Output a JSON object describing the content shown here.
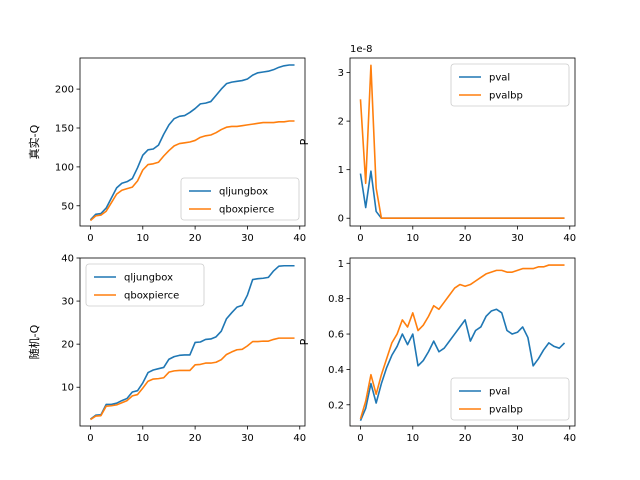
{
  "colors": {
    "series1": "#1f77b4",
    "series2": "#ff7f0e"
  },
  "chart_data": [
    {
      "type": "line",
      "ylabel": "真实-Q",
      "xlabel": "",
      "xlim": [
        -2,
        41
      ],
      "ylim": [
        24,
        240
      ],
      "xticks": [
        0,
        10,
        20,
        30,
        40
      ],
      "yticks": [
        50,
        100,
        150,
        200
      ],
      "offset_text": "",
      "legend": "lower right",
      "x": [
        0,
        1,
        2,
        3,
        4,
        5,
        6,
        7,
        8,
        9,
        10,
        11,
        12,
        13,
        14,
        15,
        16,
        17,
        18,
        19,
        20,
        21,
        22,
        23,
        24,
        25,
        26,
        27,
        28,
        29,
        30,
        31,
        32,
        33,
        34,
        35,
        36,
        37,
        38,
        39
      ],
      "series": [
        {
          "name": "qljungbox",
          "values": [
            32,
            39,
            40,
            47,
            60,
            73,
            79,
            81,
            85,
            99,
            115,
            122,
            123,
            128,
            142,
            154,
            162,
            165,
            166,
            170,
            175,
            181,
            182,
            184,
            192,
            200,
            207,
            209,
            210,
            211,
            213,
            218,
            221,
            222,
            223,
            225,
            228,
            230,
            231,
            231
          ]
        },
        {
          "name": "qboxpierce",
          "values": [
            31,
            37,
            38,
            43,
            54,
            65,
            70,
            72,
            74,
            82,
            96,
            103,
            104,
            106,
            114,
            121,
            127,
            130,
            131,
            132,
            134,
            138,
            140,
            141,
            144,
            148,
            151,
            152,
            152,
            153,
            154,
            155,
            156,
            157,
            157,
            157,
            158,
            158,
            159,
            159
          ]
        }
      ]
    },
    {
      "type": "line",
      "ylabel": "P",
      "xlabel": "",
      "xlim": [
        -2,
        41
      ],
      "ylim": [
        -0.16,
        3.3
      ],
      "xticks": [
        0,
        10,
        20,
        30,
        40
      ],
      "yticks": [
        0,
        1,
        2,
        3
      ],
      "offset_text": "1e-8",
      "legend": "upper right",
      "x": [
        0,
        1,
        2,
        3,
        4,
        5,
        6,
        7,
        8,
        9,
        10,
        11,
        12,
        13,
        14,
        15,
        16,
        17,
        18,
        19,
        20,
        21,
        22,
        23,
        24,
        25,
        26,
        27,
        28,
        29,
        30,
        31,
        32,
        33,
        34,
        35,
        36,
        37,
        38,
        39
      ],
      "series": [
        {
          "name": "pval",
          "values": [
            0.92,
            0.22,
            0.97,
            0.14,
            0,
            0,
            0,
            0,
            0,
            0,
            0,
            0,
            0,
            0,
            0,
            0,
            0,
            0,
            0,
            0,
            0,
            0,
            0,
            0,
            0,
            0,
            0,
            0,
            0,
            0,
            0,
            0,
            0,
            0,
            0,
            0,
            0,
            0,
            0,
            0
          ]
        },
        {
          "name": "pvalbp",
          "values": [
            2.45,
            0.72,
            3.15,
            0.62,
            0,
            0,
            0,
            0,
            0,
            0,
            0,
            0,
            0,
            0,
            0,
            0,
            0,
            0,
            0,
            0,
            0,
            0,
            0,
            0,
            0,
            0,
            0,
            0,
            0,
            0,
            0,
            0,
            0,
            0,
            0,
            0,
            0,
            0,
            0,
            0
          ]
        }
      ]
    },
    {
      "type": "line",
      "ylabel": "随机-Q",
      "xlabel": "",
      "xlim": [
        -2,
        41
      ],
      "ylim": [
        1,
        40
      ],
      "xticks": [
        0,
        10,
        20,
        30,
        40
      ],
      "yticks": [
        10,
        20,
        30,
        40
      ],
      "offset_text": "",
      "legend": "upper left",
      "x": [
        0,
        1,
        2,
        3,
        4,
        5,
        6,
        7,
        8,
        9,
        10,
        11,
        12,
        13,
        14,
        15,
        16,
        17,
        18,
        19,
        20,
        21,
        22,
        23,
        24,
        25,
        26,
        27,
        28,
        29,
        30,
        31,
        32,
        33,
        34,
        35,
        36,
        37,
        38,
        39
      ],
      "series": [
        {
          "name": "qljungbox",
          "values": [
            2.6,
            3.5,
            3.6,
            6.0,
            6.0,
            6.3,
            6.9,
            7.4,
            8.9,
            9.2,
            11.0,
            13.4,
            14.0,
            14.3,
            14.6,
            16.5,
            17.1,
            17.4,
            17.5,
            17.5,
            20.4,
            20.5,
            21.1,
            21.2,
            21.7,
            23.0,
            25.9,
            27.3,
            28.6,
            29.0,
            31.4,
            35.0,
            35.2,
            35.3,
            35.5,
            37.0,
            38.1,
            38.2,
            38.2,
            38.2
          ]
        },
        {
          "name": "qboxpierce",
          "values": [
            2.5,
            3.3,
            3.4,
            5.6,
            5.7,
            5.9,
            6.4,
            6.9,
            8.0,
            8.3,
            9.8,
            11.4,
            11.9,
            12.0,
            12.2,
            13.5,
            13.8,
            13.9,
            13.9,
            13.9,
            15.2,
            15.3,
            15.6,
            15.6,
            15.8,
            16.4,
            17.6,
            18.2,
            18.7,
            18.8,
            19.6,
            20.6,
            20.6,
            20.7,
            20.7,
            21.1,
            21.4,
            21.4,
            21.4,
            21.4
          ]
        }
      ]
    },
    {
      "type": "line",
      "ylabel": "P",
      "xlabel": "",
      "xlim": [
        -2,
        41
      ],
      "ylim": [
        0.08,
        1.03
      ],
      "xticks": [
        0,
        10,
        20,
        30,
        40
      ],
      "yticks": [
        0.2,
        0.4,
        0.6,
        0.8,
        1.0
      ],
      "offset_text": "",
      "legend": "lower right",
      "x": [
        0,
        1,
        2,
        3,
        4,
        5,
        6,
        7,
        8,
        9,
        10,
        11,
        12,
        13,
        14,
        15,
        16,
        17,
        18,
        19,
        20,
        21,
        22,
        23,
        24,
        25,
        26,
        27,
        28,
        29,
        30,
        31,
        32,
        33,
        34,
        35,
        36,
        37,
        38,
        39
      ],
      "series": [
        {
          "name": "pval",
          "values": [
            0.11,
            0.18,
            0.32,
            0.21,
            0.32,
            0.41,
            0.48,
            0.53,
            0.6,
            0.54,
            0.6,
            0.42,
            0.45,
            0.5,
            0.56,
            0.5,
            0.52,
            0.56,
            0.6,
            0.64,
            0.68,
            0.56,
            0.62,
            0.64,
            0.7,
            0.73,
            0.74,
            0.72,
            0.62,
            0.6,
            0.61,
            0.64,
            0.58,
            0.42,
            0.46,
            0.51,
            0.55,
            0.53,
            0.52,
            0.55
          ]
        },
        {
          "name": "pvalbp",
          "values": [
            0.12,
            0.22,
            0.37,
            0.26,
            0.37,
            0.46,
            0.55,
            0.6,
            0.68,
            0.64,
            0.72,
            0.62,
            0.65,
            0.7,
            0.76,
            0.74,
            0.78,
            0.82,
            0.86,
            0.88,
            0.87,
            0.88,
            0.9,
            0.92,
            0.94,
            0.95,
            0.96,
            0.96,
            0.95,
            0.95,
            0.96,
            0.97,
            0.97,
            0.97,
            0.98,
            0.98,
            0.99,
            0.99,
            0.99,
            0.99
          ]
        }
      ]
    }
  ]
}
